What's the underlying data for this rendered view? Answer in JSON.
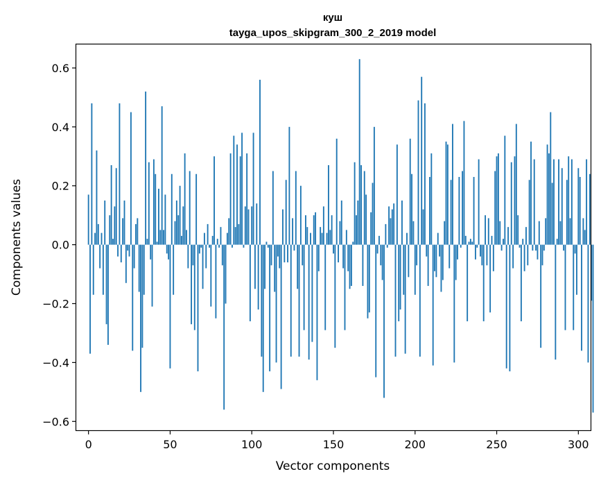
{
  "chart_data": {
    "type": "bar",
    "title": "куш",
    "subtitle": "tayga_upos_skipgram_300_2_2019 model",
    "xlabel": "Vector components",
    "ylabel": "Components values",
    "xlim": [
      -7.5,
      307.5
    ],
    "ylim": [
      -0.63,
      0.68
    ],
    "x_ticks": [
      0,
      50,
      100,
      150,
      200,
      250,
      300
    ],
    "y_ticks": [
      -0.6,
      -0.4,
      -0.2,
      0.0,
      0.2,
      0.4,
      0.6
    ],
    "x_tick_labels": [
      "0",
      "50",
      "100",
      "150",
      "200",
      "250",
      "300"
    ],
    "y_tick_labels": [
      "−0.6",
      "−0.4",
      "−0.2",
      "0.0",
      "0.2",
      "0.4",
      "0.6"
    ],
    "grid": false,
    "bar_color": "#1f77b4",
    "values": [
      0.17,
      -0.37,
      0.48,
      -0.17,
      0.04,
      0.32,
      0.07,
      -0.08,
      0.04,
      -0.17,
      0.15,
      -0.27,
      -0.34,
      0.1,
      0.27,
      0.02,
      0.13,
      0.26,
      -0.04,
      0.48,
      -0.06,
      0.09,
      0.15,
      -0.13,
      -0.02,
      -0.04,
      0.45,
      -0.36,
      -0.08,
      0.07,
      0.09,
      -0.16,
      -0.5,
      -0.35,
      -0.17,
      0.52,
      0.02,
      0.28,
      -0.05,
      -0.21,
      0.29,
      0.24,
      0.01,
      0.19,
      0.05,
      0.47,
      0.05,
      0.17,
      -0.03,
      -0.05,
      -0.42,
      0.24,
      -0.17,
      0.08,
      0.15,
      0.1,
      0.2,
      0.03,
      0.13,
      0.31,
      0.05,
      -0.08,
      0.25,
      -0.27,
      -0.07,
      -0.29,
      0.24,
      -0.43,
      -0.03,
      -0.01,
      -0.15,
      0.04,
      -0.08,
      0.07,
      -0.01,
      -0.21,
      0.03,
      0.3,
      -0.25,
      0.02,
      -0.01,
      0.06,
      -0.07,
      -0.56,
      -0.2,
      0.04,
      0.09,
      0.31,
      -0.01,
      0.37,
      0.06,
      0.34,
      0.07,
      0.3,
      0.38,
      -0.01,
      0.13,
      0.31,
      0.12,
      -0.26,
      0.13,
      0.38,
      -0.15,
      0.14,
      -0.22,
      0.56,
      -0.38,
      -0.5,
      -0.15,
      0.01,
      -0.01,
      -0.43,
      -0.07,
      0.25,
      -0.16,
      -0.4,
      -0.04,
      -0.08,
      -0.49,
      0.12,
      -0.06,
      0.22,
      -0.06,
      0.4,
      -0.38,
      0.09,
      -0.02,
      0.25,
      -0.15,
      -0.38,
      0.2,
      -0.07,
      -0.29,
      0.1,
      0.06,
      -0.39,
      0.04,
      -0.33,
      0.1,
      0.11,
      -0.46,
      -0.09,
      0.06,
      0.04,
      0.13,
      -0.29,
      0.04,
      0.27,
      0.05,
      0.1,
      -0.03,
      -0.35,
      0.36,
      -0.06,
      0.08,
      0.15,
      -0.08,
      -0.29,
      0.05,
      -0.09,
      -0.15,
      -0.14,
      0.01,
      0.28,
      0.1,
      0.15,
      0.63,
      0.27,
      -0.14,
      0.25,
      0.17,
      -0.25,
      -0.23,
      0.11,
      0.21,
      0.4,
      -0.45,
      -0.03,
      0.03,
      -0.07,
      -0.12,
      -0.52,
      0.07,
      -0.01,
      0.13,
      0.09,
      0.12,
      0.14,
      -0.38,
      0.34,
      -0.26,
      -0.22,
      0.15,
      -0.17,
      -0.37,
      0.04,
      -0.11,
      0.36,
      0.24,
      0.08,
      -0.17,
      -0.07,
      0.49,
      -0.38,
      0.57,
      0.12,
      0.48,
      -0.04,
      -0.14,
      0.23,
      0.31,
      -0.41,
      -0.09,
      -0.11,
      0.04,
      -0.04,
      -0.16,
      -0.12,
      0.08,
      0.35,
      0.34,
      -0.08,
      0.22,
      0.41,
      -0.4,
      -0.12,
      -0.05,
      0.23,
      -0.01,
      0.25,
      0.42,
      0.03,
      -0.26,
      0.01,
      0.02,
      0.01,
      0.23,
      -0.05,
      -0.01,
      0.29,
      -0.04,
      -0.07,
      -0.26,
      0.1,
      -0.07,
      0.09,
      -0.23,
      0.03,
      -0.09,
      0.25,
      0.3,
      0.31,
      0.08,
      -0.02,
      0.02,
      0.37,
      -0.42,
      0.06,
      -0.43,
      0.28,
      -0.08,
      0.3,
      0.41,
      0.1,
      -0.01,
      -0.26,
      0.02,
      -0.09,
      0.06,
      -0.07,
      0.22,
      0.35,
      -0.02,
      0.29,
      -0.02,
      -0.05,
      0.08,
      -0.35,
      -0.07,
      -0.02,
      0.09,
      0.34,
      0.31,
      0.45,
      0.21,
      0.29,
      -0.39,
      0.02,
      0.29,
      0.08,
      0.26,
      -0.02,
      -0.29,
      0.22,
      0.3,
      0.09,
      0.29,
      -0.29,
      -0.03,
      -0.17,
      0.26,
      0.23,
      -0.36,
      0.09,
      0.05,
      0.29,
      -0.4,
      0.24,
      -0.19,
      -0.57
    ]
  }
}
